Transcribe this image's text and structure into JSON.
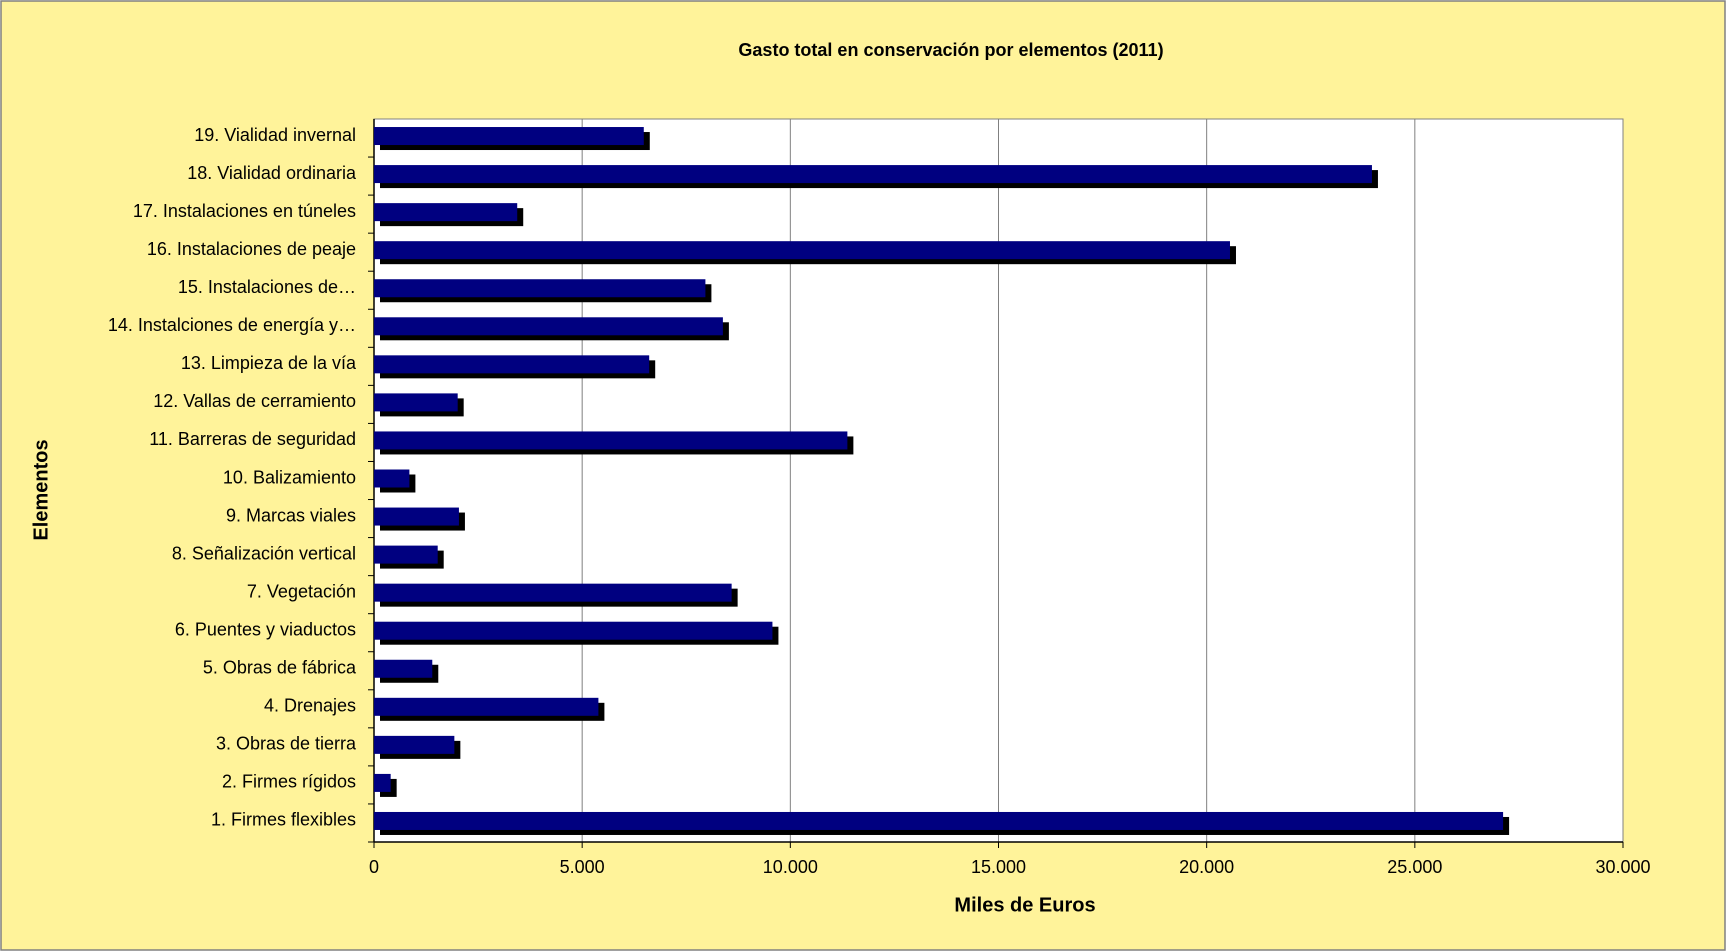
{
  "chart_data": {
    "type": "bar",
    "orientation": "horizontal",
    "title": "Gasto total en conservación por elementos (2011)",
    "x_label": "Miles de Euros",
    "y_label": "Elementos",
    "categories": [
      "1. Firmes flexibles",
      "2. Firmes rígidos",
      "3. Obras de tierra",
      "4. Drenajes",
      "5. Obras de fábrica",
      "6. Puentes y viaductos",
      "7. Vegetación",
      "8. Señalización vertical",
      "9. Marcas viales",
      "10. Balizamiento",
      "11. Barreras de seguridad",
      "12. Vallas de cerramiento",
      "13. Limpieza de la vía",
      "14. Instalciones de energía y…",
      "15. Instalaciones de…",
      "16. Instalaciones de peaje",
      "17. Instalaciones en túneles",
      "18. Vialidad ordinaria",
      "19. Vialidad invernal"
    ],
    "values": [
      27120,
      400,
      1930,
      5390,
      1400,
      9570,
      8590,
      1530,
      2040,
      850,
      11370,
      2010,
      6610,
      8380,
      7960,
      20560,
      3440,
      23970,
      6480
    ],
    "color": "#000080",
    "xlim": [
      0,
      30000
    ],
    "xticks": [
      0,
      {
        "value": 5000,
        "label": "5.000"
      },
      {
        "value": 10000,
        "label": "10.000"
      },
      {
        "value": 15000,
        "label": "15.000"
      },
      {
        "value": 20000,
        "label": "20.000"
      },
      {
        "value": 25000,
        "label": "25.000"
      },
      {
        "value": 30000,
        "label": "30.000"
      }
    ],
    "grid": true
  }
}
